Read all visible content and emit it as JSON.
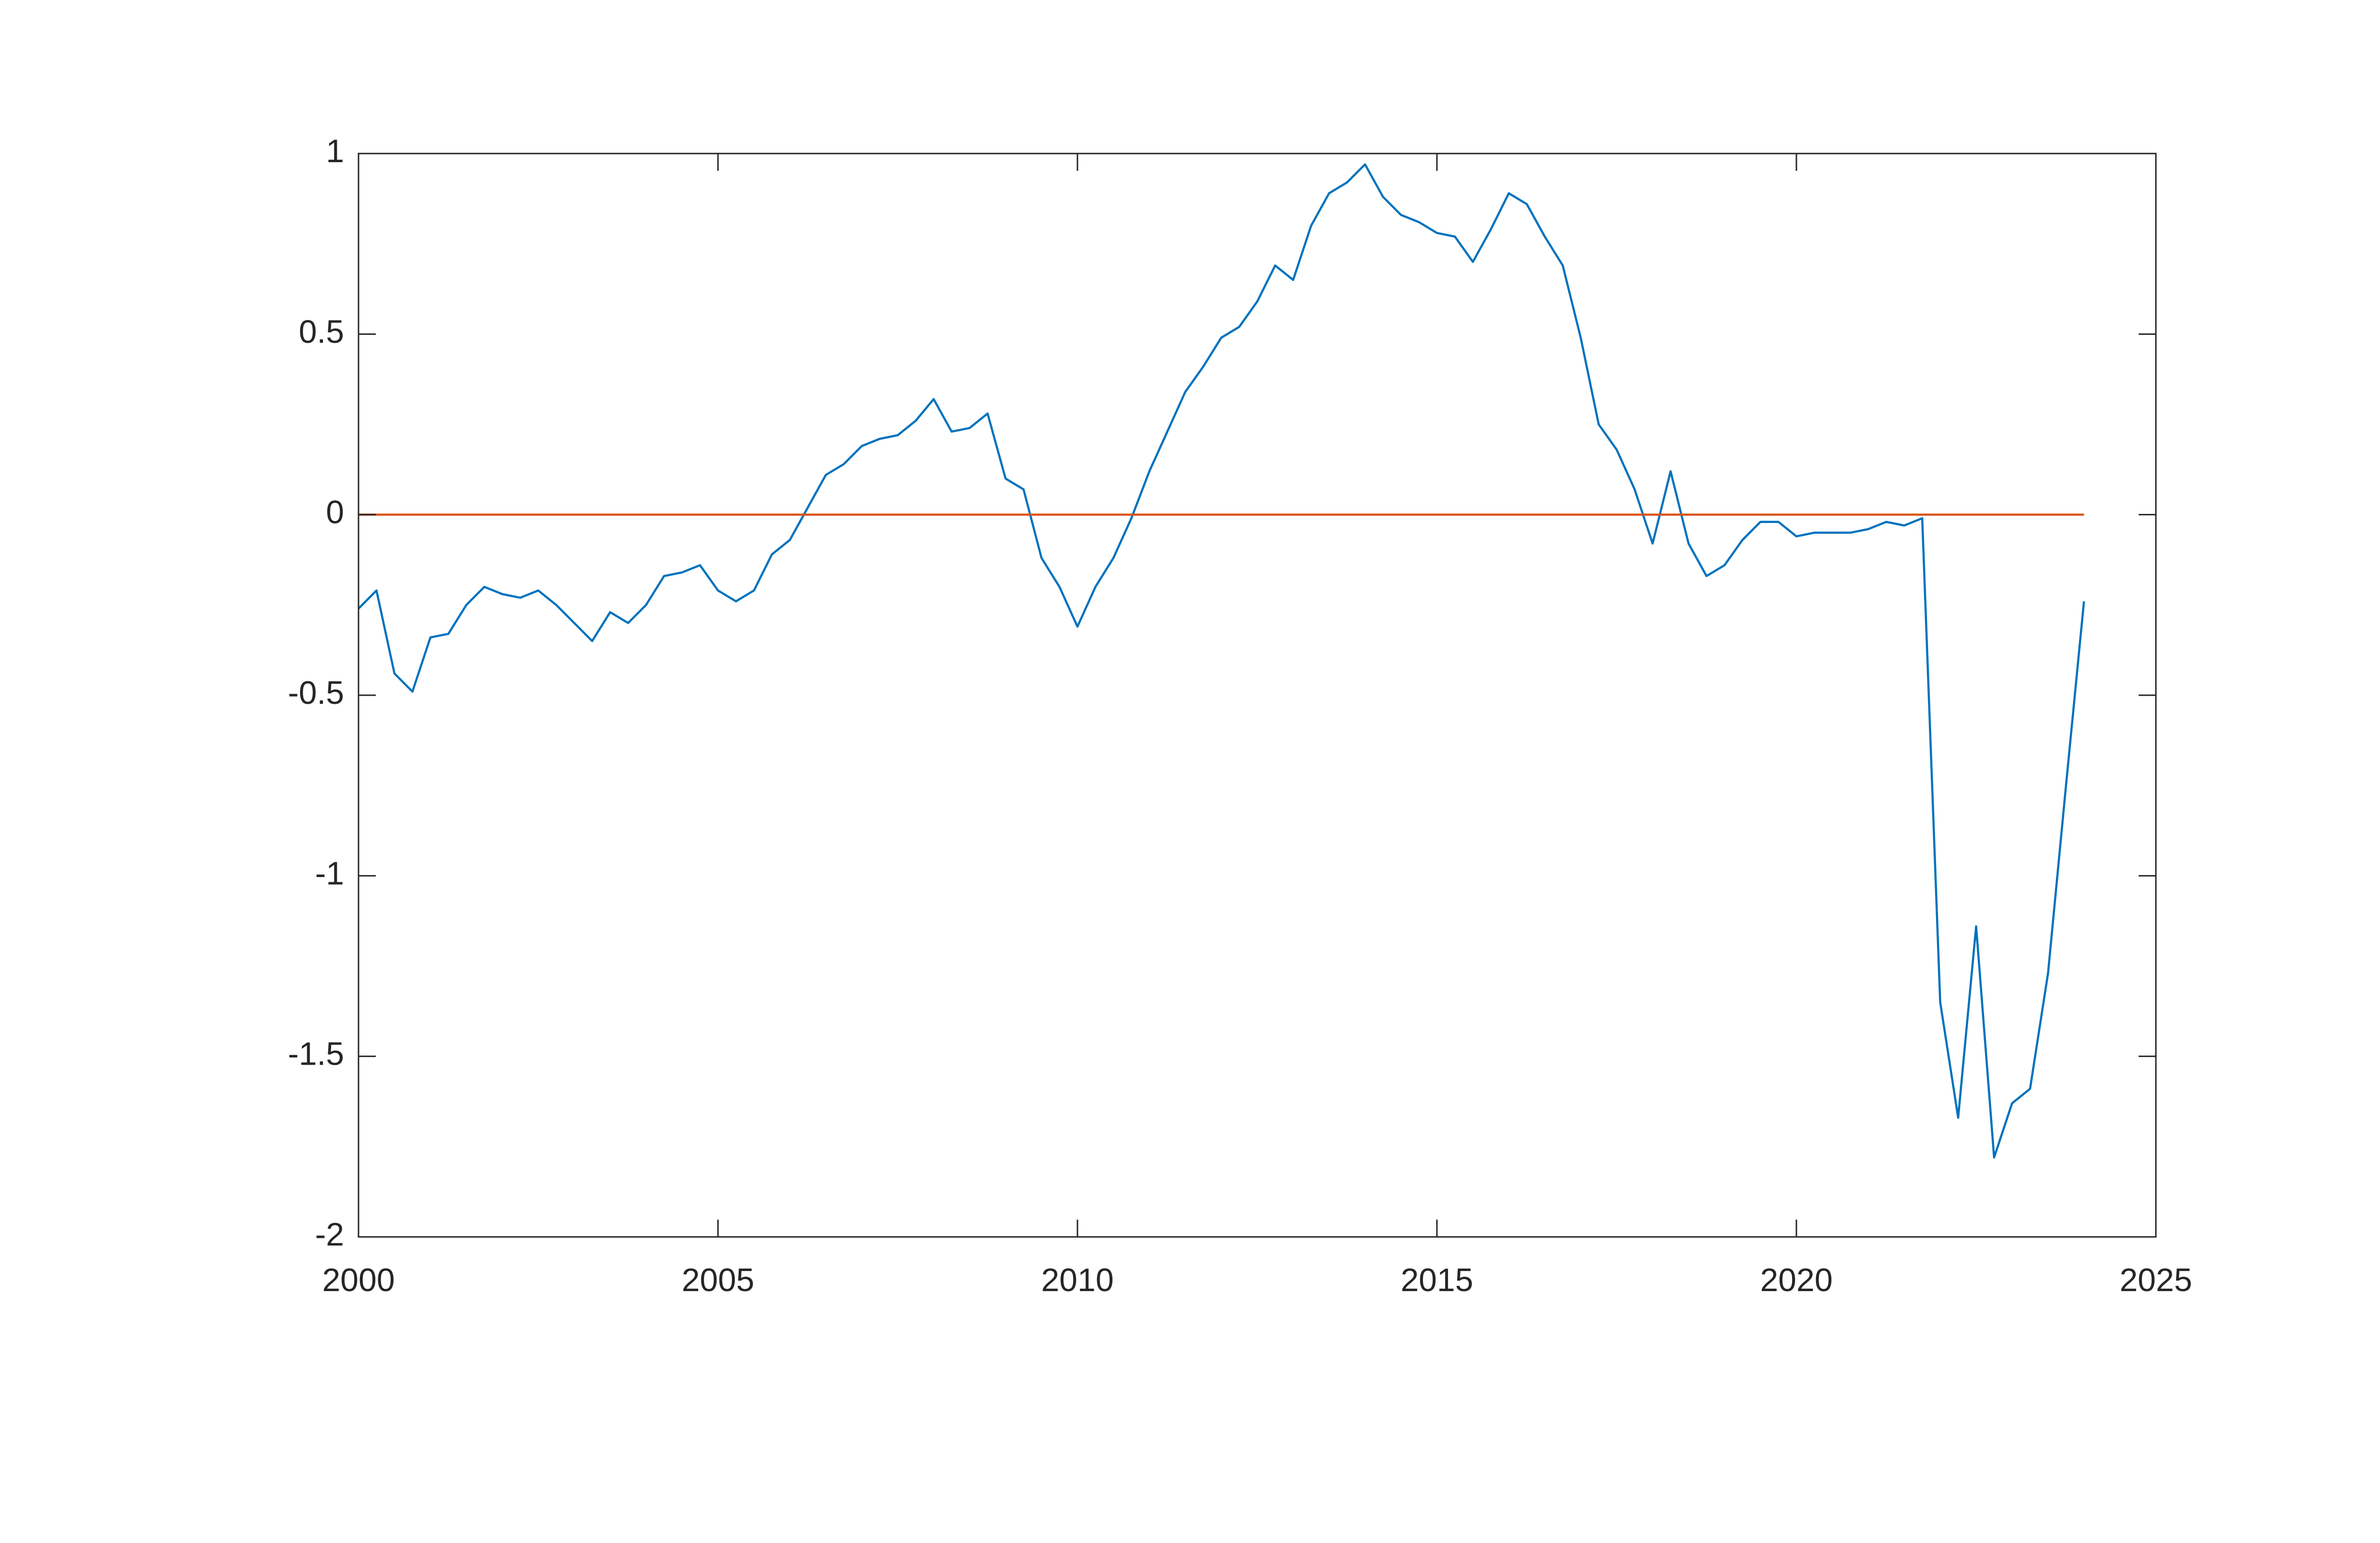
{
  "chart_data": {
    "type": "line",
    "x": [
      2000,
      2000.25,
      2000.5,
      2000.75,
      2001,
      2001.25,
      2001.5,
      2001.75,
      2002,
      2002.25,
      2002.5,
      2002.75,
      2003,
      2003.25,
      2003.5,
      2003.75,
      2004,
      2004.25,
      2004.5,
      2004.75,
      2005,
      2005.25,
      2005.5,
      2005.75,
      2006,
      2006.25,
      2006.5,
      2006.75,
      2007,
      2007.25,
      2007.5,
      2007.75,
      2008,
      2008.25,
      2008.5,
      2008.75,
      2009,
      2009.25,
      2009.5,
      2009.75,
      2010,
      2010.25,
      2010.5,
      2010.75,
      2011,
      2011.25,
      2011.5,
      2011.75,
      2012,
      2012.25,
      2012.5,
      2012.75,
      2013,
      2013.25,
      2013.5,
      2013.75,
      2014,
      2014.25,
      2014.5,
      2014.75,
      2015,
      2015.25,
      2015.5,
      2015.75,
      2016,
      2016.25,
      2016.5,
      2016.75,
      2017,
      2017.25,
      2017.5,
      2017.75,
      2018,
      2018.25,
      2018.5,
      2018.75,
      2019,
      2019.25,
      2019.5,
      2019.75,
      2020,
      2020.25,
      2020.5,
      2020.75,
      2021,
      2021.25,
      2021.5,
      2021.75,
      2022,
      2022.25,
      2022.5,
      2022.75,
      2023,
      2023.25,
      2023.5,
      2023.75,
      2024
    ],
    "series": [
      {
        "color": "#0072BD",
        "values": [
          -0.26,
          -0.21,
          -0.44,
          -0.49,
          -0.34,
          -0.33,
          -0.25,
          -0.2,
          -0.22,
          -0.23,
          -0.21,
          -0.25,
          -0.3,
          -0.35,
          -0.27,
          -0.3,
          -0.25,
          -0.17,
          -0.16,
          -0.14,
          -0.21,
          -0.24,
          -0.21,
          -0.11,
          -0.07,
          0.02,
          0.11,
          0.14,
          0.19,
          0.21,
          0.22,
          0.26,
          0.32,
          0.23,
          0.24,
          0.28,
          0.1,
          0.07,
          -0.12,
          -0.2,
          -0.31,
          -0.2,
          -0.12,
          -0.01,
          0.12,
          0.23,
          0.34,
          0.41,
          0.49,
          0.52,
          0.59,
          0.69,
          0.65,
          0.8,
          0.89,
          0.92,
          0.97,
          0.88,
          0.83,
          0.81,
          0.78,
          0.77,
          0.7,
          0.79,
          0.89,
          0.86,
          0.77,
          0.69,
          0.49,
          0.25,
          0.18,
          0.07,
          -0.08,
          0.12,
          -0.08,
          -0.17,
          -0.14,
          -0.07,
          -0.02,
          -0.02,
          -0.06,
          -0.05,
          -0.05,
          -0.05,
          -0.04,
          -0.02,
          -0.03,
          -0.01,
          -1.35,
          -1.67,
          -1.14,
          -1.78,
          -1.63,
          -1.59,
          -1.27,
          -0.75,
          -0.24
        ]
      },
      {
        "color": "#D95319",
        "x": [
          2000,
          2024
        ],
        "values": [
          0,
          0
        ]
      }
    ],
    "xlim": [
      2000,
      2025
    ],
    "xticks": [
      2000,
      2005,
      2010,
      2015,
      2020,
      2025
    ],
    "ylim": [
      -2,
      1
    ],
    "yticks": [
      -2,
      -1.5,
      -1,
      -0.5,
      0,
      0.5,
      1
    ]
  }
}
